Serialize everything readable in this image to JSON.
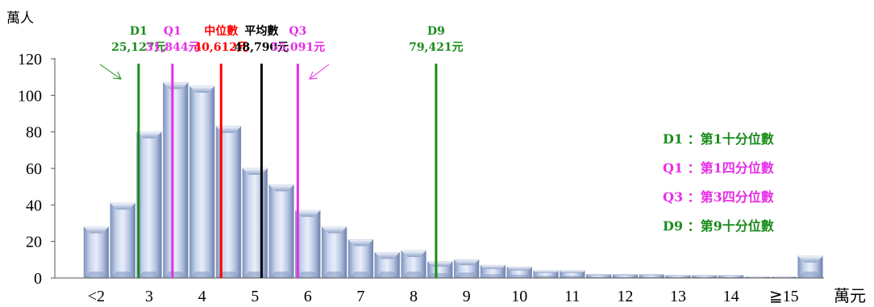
{
  "chart_data": {
    "type": "bar",
    "title": "",
    "ylabel": "萬人",
    "x_unit": "萬元",
    "ylim": [
      0,
      120
    ],
    "yticks": [
      0,
      20,
      40,
      60,
      80,
      100,
      120
    ],
    "xticks": [
      {
        "label": "<2",
        "pos": 0
      },
      {
        "label": "3",
        "pos": 2
      },
      {
        "label": "4",
        "pos": 4
      },
      {
        "label": "5",
        "pos": 6
      },
      {
        "label": "6",
        "pos": 8
      },
      {
        "label": "7",
        "pos": 10
      },
      {
        "label": "8",
        "pos": 12
      },
      {
        "label": "9",
        "pos": 14
      },
      {
        "label": "10",
        "pos": 16
      },
      {
        "label": "11",
        "pos": 18
      },
      {
        "label": "12",
        "pos": 20
      },
      {
        "label": "13",
        "pos": 22
      },
      {
        "label": "14",
        "pos": 24
      },
      {
        "label": "≧15",
        "pos": 26
      }
    ],
    "values": [
      28,
      41,
      80,
      107,
      105,
      83,
      60,
      51,
      37,
      28,
      21,
      14,
      15,
      9,
      10,
      7,
      6,
      4,
      4,
      2,
      2,
      2,
      1.5,
      1.5,
      1.5,
      0.5,
      0.5,
      12
    ],
    "markers": [
      {
        "id": "d1",
        "name": "D1",
        "value": "25,127元",
        "pos": 2.1,
        "color": "#1a8c1a"
      },
      {
        "id": "q1",
        "name": "Q1",
        "value": "31,844元",
        "pos": 3.38,
        "color": "#e62ee6"
      },
      {
        "id": "median",
        "name": "中位數",
        "value": "40,612元",
        "pos": 5.22,
        "color": "#ff0000"
      },
      {
        "id": "mean",
        "name": "平均數",
        "value": "48,790元",
        "pos": 6.75,
        "color": "#000000"
      },
      {
        "id": "q3",
        "name": "Q3",
        "value": "55,091元",
        "pos": 8.12,
        "color": "#e62ee6"
      },
      {
        "id": "d9",
        "name": "D9",
        "value": "79,421元",
        "pos": 13.35,
        "color": "#1a8c1a"
      }
    ],
    "legend": [
      {
        "text": "D1 ：第1十分位數",
        "color": "#1a8c1a"
      },
      {
        "text": "Q1 ：第1四分位數",
        "color": "#e62ee6"
      },
      {
        "text": "Q3 ：第3四分位數",
        "color": "#e62ee6"
      },
      {
        "text": "D9 ：第9十分位數",
        "color": "#1a8c1a"
      }
    ]
  }
}
